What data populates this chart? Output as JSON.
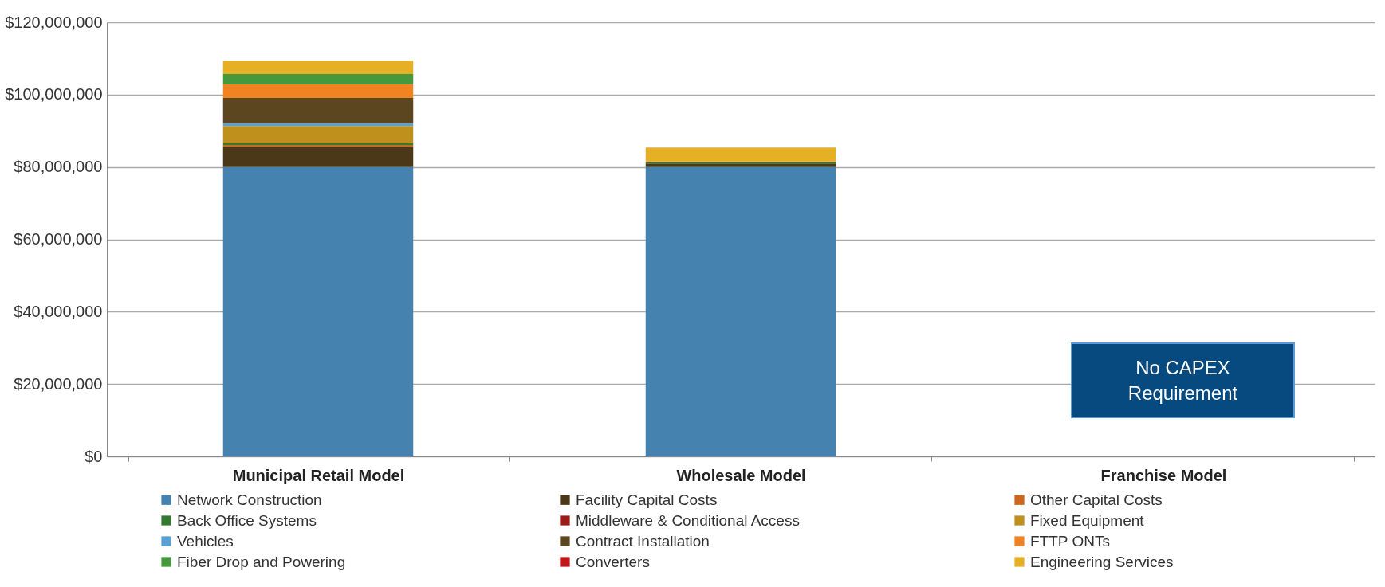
{
  "chart_data": {
    "type": "bar",
    "stacked": true,
    "categories": [
      "Municipal Retail Model",
      "Wholesale Model",
      "Franchise Model"
    ],
    "series": [
      {
        "name": "Network Construction",
        "color": "#4682b0",
        "values": [
          80000000,
          80000000,
          null
        ]
      },
      {
        "name": "Facility Capital Costs",
        "color": "#4a3818",
        "values": [
          5600000,
          1000000,
          null
        ]
      },
      {
        "name": "Other Capital Costs",
        "color": "#cc671e",
        "values": [
          500000,
          0,
          null
        ]
      },
      {
        "name": "Back Office Systems",
        "color": "#337a30",
        "values": [
          500000,
          300000,
          null
        ]
      },
      {
        "name": "Middleware & Conditional Access",
        "color": "#9b1b1b",
        "values": [
          0,
          0,
          null
        ]
      },
      {
        "name": "Fixed Equipment",
        "color": "#bf901b",
        "values": [
          4700000,
          300000,
          null
        ]
      },
      {
        "name": "Vehicles",
        "color": "#5aa0d4",
        "values": [
          800000,
          0,
          null
        ]
      },
      {
        "name": "Contract Installation",
        "color": "#5b4620",
        "values": [
          7000000,
          0,
          null
        ]
      },
      {
        "name": "FTTP ONTs",
        "color": "#f28322",
        "values": [
          3700000,
          0,
          null
        ]
      },
      {
        "name": "Fiber Drop and Powering",
        "color": "#45993c",
        "values": [
          2900000,
          0,
          null
        ]
      },
      {
        "name": "Converters",
        "color": "#c0171c",
        "values": [
          0,
          0,
          null
        ]
      },
      {
        "name": "Engineering Services",
        "color": "#e5b024",
        "values": [
          3700000,
          3800000,
          null
        ]
      }
    ],
    "ylim": [
      0,
      120000000
    ],
    "yticks": [
      {
        "value": 0,
        "label": "$0"
      },
      {
        "value": 20000000,
        "label": "$20,000,000"
      },
      {
        "value": 40000000,
        "label": "$40,000,000"
      },
      {
        "value": 60000000,
        "label": "$60,000,000"
      },
      {
        "value": 80000000,
        "label": "$80,000,000"
      },
      {
        "value": 100000000,
        "label": "$100,000,000"
      },
      {
        "value": 120000000,
        "label": "$120,000,000"
      }
    ],
    "grid": "y",
    "legend": "bottom",
    "annotations": [
      "No CAPEX\nRequirement"
    ]
  }
}
